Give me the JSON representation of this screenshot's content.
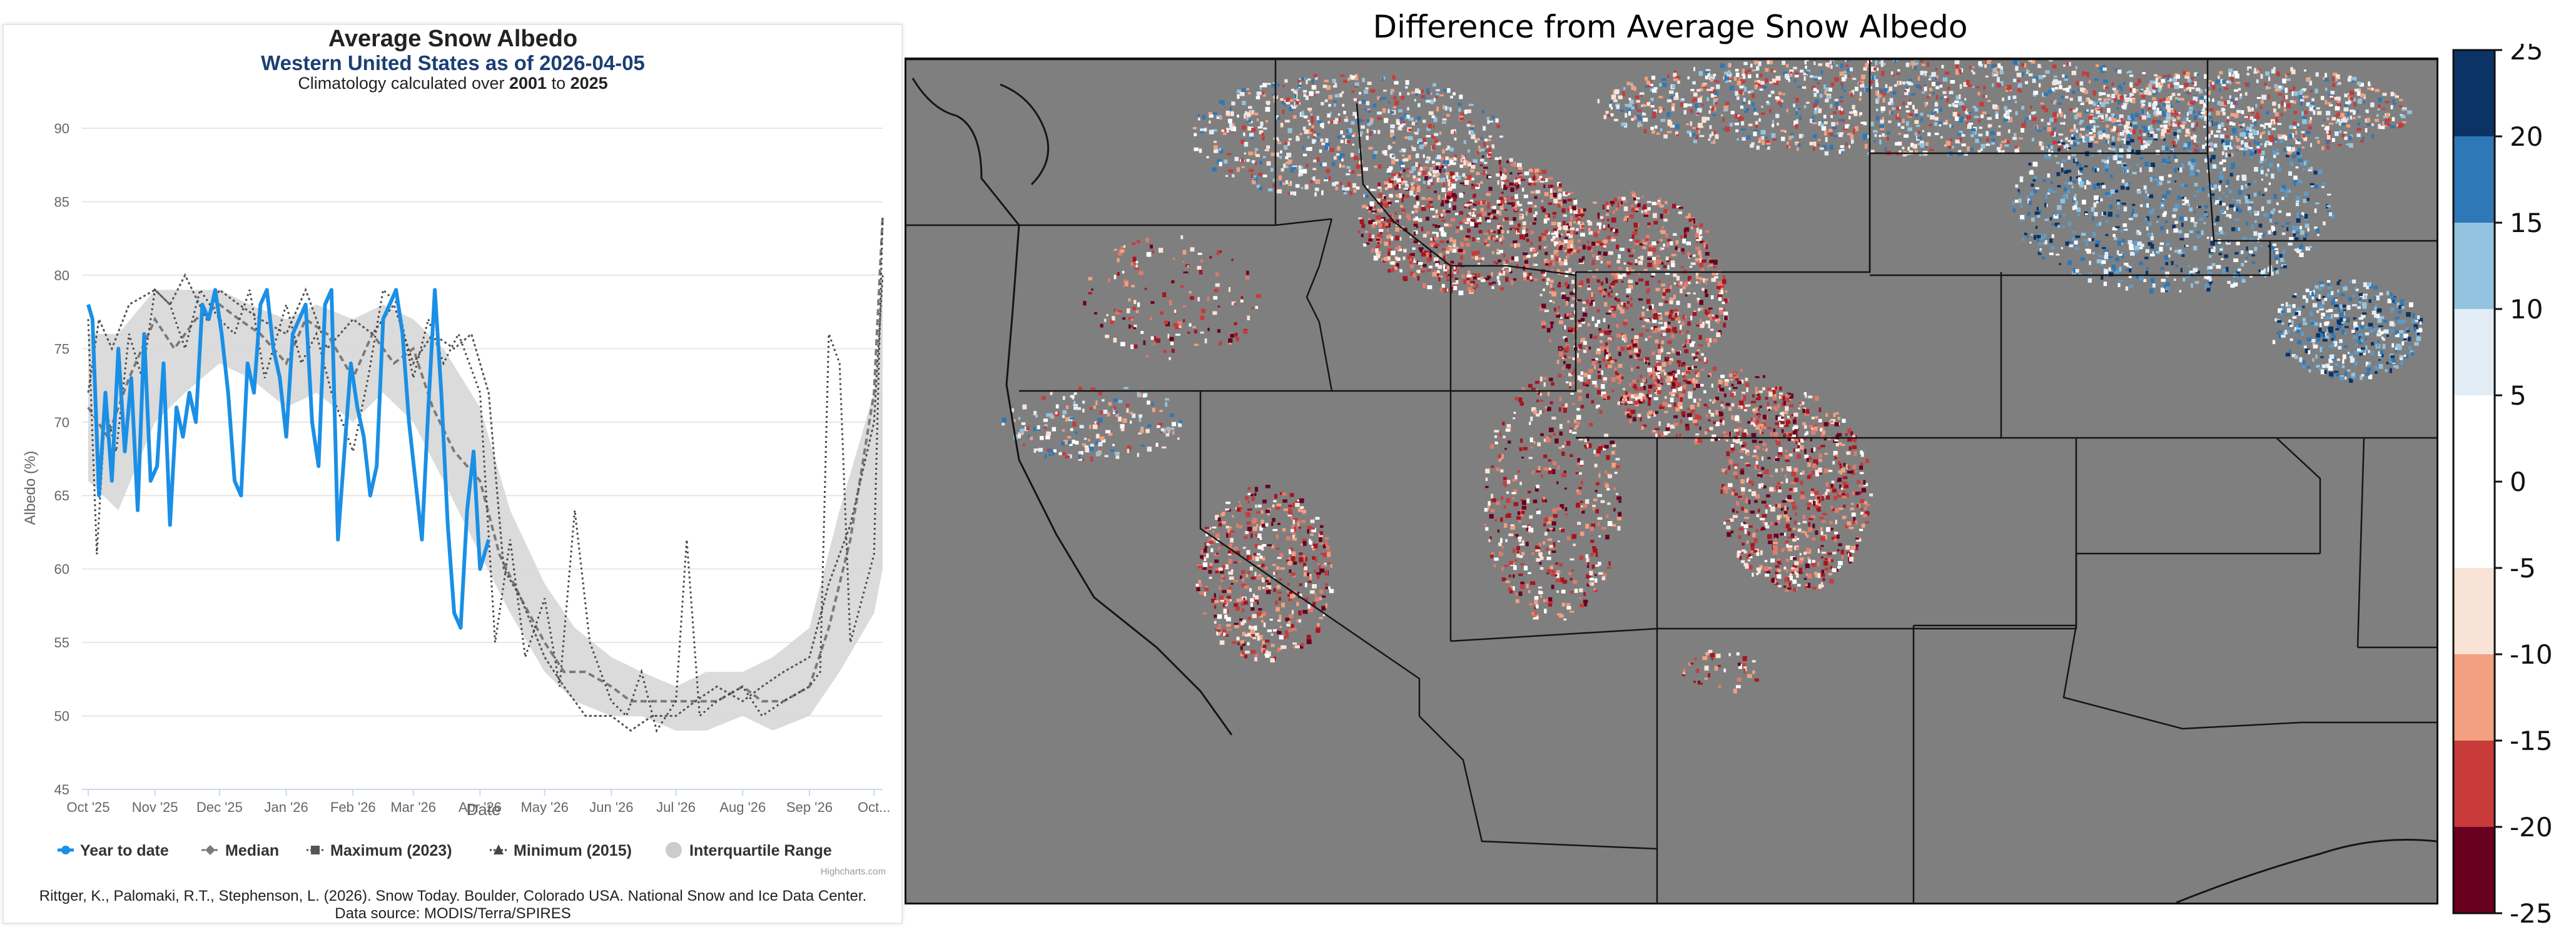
{
  "chart_data": [
    {
      "type": "line",
      "title": "Average Snow Albedo",
      "subtitle_prefix": "Western United States as of ",
      "subtitle_date": "2026-04-05",
      "subsubtitle_prefix": "Climatology calculated over ",
      "clim_start": "2001",
      "clim_to": " to ",
      "clim_end": "2025",
      "xlabel": "Date",
      "ylabel": "Albedo (%)",
      "ylim": [
        45,
        90
      ],
      "yticks": [
        45,
        50,
        55,
        60,
        65,
        70,
        75,
        80,
        85,
        90
      ],
      "xlim": [
        "2025-10-01",
        "2026-10-05"
      ],
      "xticks": [
        {
          "date": "2025-10-01",
          "label": "Oct '25"
        },
        {
          "date": "2025-11-01",
          "label": "Nov '25"
        },
        {
          "date": "2025-12-01",
          "label": "Dec '25"
        },
        {
          "date": "2026-01-01",
          "label": "Jan '26"
        },
        {
          "date": "2026-02-01",
          "label": "Feb '26"
        },
        {
          "date": "2026-03-01",
          "label": "Mar '26"
        },
        {
          "date": "2026-04-01",
          "label": "Apr '26"
        },
        {
          "date": "2026-05-01",
          "label": "May '26"
        },
        {
          "date": "2026-06-01",
          "label": "Jun '26"
        },
        {
          "date": "2026-07-01",
          "label": "Jul '26"
        },
        {
          "date": "2026-08-01",
          "label": "Aug '26"
        },
        {
          "date": "2026-09-01",
          "label": "Sep '26"
        },
        {
          "date": "2026-10-01",
          "label": "Oct..."
        }
      ],
      "grid": true,
      "legend_position": "bottom",
      "series": [
        {
          "name": "Year to date",
          "color": "#1a8fe6",
          "x": [
            "2025-10-01",
            "2025-10-03",
            "2025-10-06",
            "2025-10-09",
            "2025-10-12",
            "2025-10-15",
            "2025-10-18",
            "2025-10-21",
            "2025-10-24",
            "2025-10-27",
            "2025-10-30",
            "2025-11-02",
            "2025-11-05",
            "2025-11-08",
            "2025-11-11",
            "2025-11-14",
            "2025-11-17",
            "2025-11-20",
            "2025-11-23",
            "2025-11-26",
            "2025-11-29",
            "2025-12-02",
            "2025-12-05",
            "2025-12-08",
            "2025-12-11",
            "2025-12-14",
            "2025-12-17",
            "2025-12-20",
            "2025-12-23",
            "2025-12-26",
            "2025-12-29",
            "2026-01-01",
            "2026-01-04",
            "2026-01-07",
            "2026-01-10",
            "2026-01-13",
            "2026-01-16",
            "2026-01-19",
            "2026-01-22",
            "2026-01-25",
            "2026-01-28",
            "2026-01-31",
            "2026-02-03",
            "2026-02-06",
            "2026-02-09",
            "2026-02-12",
            "2026-02-15",
            "2026-02-18",
            "2026-02-21",
            "2026-02-24",
            "2026-02-27",
            "2026-03-02",
            "2026-03-05",
            "2026-03-08",
            "2026-03-11",
            "2026-03-14",
            "2026-03-17",
            "2026-03-20",
            "2026-03-23",
            "2026-03-26",
            "2026-03-29",
            "2026-04-01",
            "2026-04-05"
          ],
          "y": [
            78,
            77,
            65,
            72,
            66,
            75,
            68,
            73,
            64,
            76,
            66,
            67,
            74,
            63,
            71,
            69,
            72,
            70,
            78,
            77,
            79,
            76,
            72,
            66,
            65,
            74,
            72,
            78,
            79,
            75,
            73,
            69,
            76,
            77,
            78,
            70,
            67,
            78,
            79,
            62,
            68,
            74,
            71,
            69,
            65,
            67,
            77,
            78,
            79,
            76,
            70,
            66,
            62,
            71,
            79,
            72,
            63,
            57,
            56,
            64,
            68,
            60,
            62
          ]
        },
        {
          "name": "Median",
          "color": "#7a7a7a",
          "x": [
            "2025-10-01",
            "2025-10-10",
            "2025-10-20",
            "2025-11-01",
            "2025-11-10",
            "2025-11-20",
            "2025-12-01",
            "2025-12-10",
            "2025-12-20",
            "2026-01-01",
            "2026-01-10",
            "2026-01-20",
            "2026-02-01",
            "2026-02-10",
            "2026-02-20",
            "2026-03-01",
            "2026-03-10",
            "2026-03-20",
            "2026-04-01",
            "2026-04-10",
            "2026-04-20",
            "2026-05-01",
            "2026-05-10",
            "2026-05-20",
            "2026-06-01",
            "2026-06-10",
            "2026-06-20",
            "2026-07-01",
            "2026-07-10",
            "2026-07-20",
            "2026-08-01",
            "2026-08-10",
            "2026-08-20",
            "2026-09-01",
            "2026-09-10",
            "2026-09-20",
            "2026-10-01",
            "2026-10-05"
          ],
          "y": [
            71,
            69,
            73,
            77,
            75,
            77,
            78,
            77,
            76,
            74,
            77,
            76,
            73,
            76,
            74,
            75,
            71,
            68,
            66,
            61,
            58,
            55,
            53,
            53,
            52,
            51,
            51,
            51,
            51,
            51,
            52,
            51,
            51,
            52,
            56,
            62,
            72,
            84
          ]
        },
        {
          "name": "Maximum (2023)",
          "color": "#555555",
          "x": [
            "2025-10-01",
            "2025-10-06",
            "2025-10-12",
            "2025-10-20",
            "2025-11-01",
            "2025-11-08",
            "2025-11-15",
            "2025-11-25",
            "2025-12-01",
            "2025-12-10",
            "2025-12-20",
            "2026-01-01",
            "2026-01-10",
            "2026-01-20",
            "2026-02-01",
            "2026-02-10",
            "2026-02-20",
            "2026-03-01",
            "2026-03-10",
            "2026-03-20",
            "2026-03-28",
            "2026-04-05",
            "2026-04-12",
            "2026-04-20",
            "2026-05-01",
            "2026-05-10",
            "2026-05-20",
            "2026-06-01",
            "2026-06-10",
            "2026-06-20",
            "2026-07-01",
            "2026-07-10",
            "2026-07-20",
            "2026-08-01",
            "2026-08-10",
            "2026-08-20",
            "2026-09-01",
            "2026-09-10",
            "2026-09-20",
            "2026-10-01",
            "2026-10-05"
          ],
          "y": [
            72,
            77,
            75,
            78,
            79,
            78,
            80,
            77,
            79,
            78,
            77,
            76,
            79,
            75,
            77,
            76,
            78,
            74,
            76,
            75,
            76,
            72,
            60,
            58,
            54,
            52,
            50,
            50,
            49,
            50,
            50,
            51,
            52,
            51,
            52,
            53,
            54,
            59,
            63,
            70,
            80
          ]
        },
        {
          "name": "Minimum (2015)",
          "color": "#444444",
          "x": [
            "2025-10-01",
            "2025-10-05",
            "2025-10-09",
            "2025-10-14",
            "2025-10-20",
            "2025-10-26",
            "2025-11-01",
            "2025-11-08",
            "2025-11-15",
            "2025-11-22",
            "2025-12-01",
            "2025-12-08",
            "2025-12-15",
            "2025-12-22",
            "2026-01-01",
            "2026-01-08",
            "2026-01-15",
            "2026-01-22",
            "2026-02-01",
            "2026-02-08",
            "2026-02-15",
            "2026-02-22",
            "2026-03-01",
            "2026-03-08",
            "2026-03-15",
            "2026-03-22",
            "2026-04-01",
            "2026-04-08",
            "2026-04-15",
            "2026-04-22",
            "2026-05-01",
            "2026-05-08",
            "2026-05-15",
            "2026-05-22",
            "2026-06-01",
            "2026-06-08",
            "2026-06-15",
            "2026-06-22",
            "2026-07-01",
            "2026-07-06",
            "2026-07-12",
            "2026-07-20",
            "2026-08-01",
            "2026-08-10",
            "2026-08-20",
            "2026-09-01",
            "2026-09-06",
            "2026-09-10",
            "2026-09-15",
            "2026-09-20",
            "2026-10-01",
            "2026-10-05"
          ],
          "y": [
            77,
            61,
            71,
            68,
            76,
            73,
            79,
            78,
            75,
            79,
            77,
            76,
            79,
            73,
            78,
            74,
            76,
            72,
            68,
            73,
            79,
            78,
            73,
            77,
            74,
            76,
            72,
            55,
            62,
            54,
            58,
            52,
            64,
            55,
            51,
            50,
            53,
            49,
            51,
            62,
            50,
            51,
            52,
            50,
            51,
            52,
            53,
            76,
            74,
            55,
            61,
            84
          ]
        },
        {
          "name": "Interquartile Range",
          "color": "#d9d9d9",
          "x": [
            "2025-10-01",
            "2025-10-15",
            "2025-11-01",
            "2025-11-15",
            "2025-12-01",
            "2025-12-15",
            "2026-01-01",
            "2026-01-15",
            "2026-02-01",
            "2026-02-15",
            "2026-03-01",
            "2026-03-15",
            "2026-04-01",
            "2026-04-15",
            "2026-05-01",
            "2026-05-15",
            "2026-06-01",
            "2026-06-15",
            "2026-07-01",
            "2026-07-15",
            "2026-08-01",
            "2026-08-15",
            "2026-09-01",
            "2026-09-15",
            "2026-10-01",
            "2026-10-05"
          ],
          "low": [
            66,
            64,
            70,
            72,
            74,
            73,
            71,
            72,
            70,
            72,
            70,
            66,
            61,
            57,
            53,
            51,
            50,
            50,
            49,
            49,
            50,
            49,
            50,
            53,
            57,
            60
          ],
          "high": [
            76,
            76,
            79,
            79,
            79,
            78,
            77,
            78,
            77,
            78,
            77,
            75,
            71,
            64,
            59,
            56,
            54,
            53,
            52,
            53,
            53,
            54,
            56,
            64,
            72,
            80
          ]
        }
      ],
      "legend": [
        "Year to date",
        "Median",
        "Maximum (2023)",
        "Minimum (2015)",
        "Interquartile Range"
      ],
      "credits": "Highcharts.com",
      "citation_line1": "Rittger, K., Palomaki, R.T., Stephenson, L. (2026). Snow Today. Boulder, Colorado USA. National Snow and Ice Data Center.",
      "citation_line2": "Data source: MODIS/Terra/SPIRES"
    },
    {
      "type": "heatmap",
      "title": "Difference from Average Snow Albedo",
      "colorbar_ticks": [
        25,
        20,
        15,
        10,
        5,
        0,
        -5,
        -10,
        -15,
        -20,
        -25
      ],
      "colorbar_colors": [
        "#0b3366",
        "#2e78b7",
        "#93c3de",
        "#e2ecf5",
        "#ffffff",
        "#ffffff",
        "#f9e2d6",
        "#f2a07f",
        "#c93a3a",
        "#6a0020"
      ],
      "background_color": "#7f7f7f"
    }
  ]
}
